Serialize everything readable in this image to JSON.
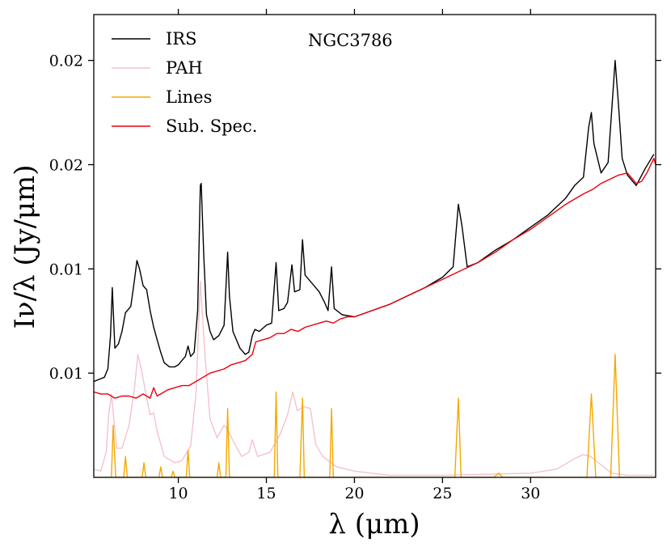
{
  "chart_data": {
    "type": "line",
    "title": "NGC3786",
    "xlabel": "λ (μm)",
    "ylabel": "Iν/λ (Jy/μm)",
    "xlim": [
      5.2,
      37.1
    ],
    "ylim": [
      0.0,
      0.0222
    ],
    "x_ticks": [
      10,
      15,
      20,
      25,
      30
    ],
    "x_tick_labels": [
      "10",
      "15",
      "20",
      "25",
      "30"
    ],
    "y_ticks": [
      0.005,
      0.01,
      0.015,
      0.02
    ],
    "y_tick_labels": [
      "0.01",
      "0.01",
      "0.02",
      "0.02"
    ],
    "legend_position": "top-left",
    "series": [
      {
        "name": "IRS",
        "color": "#000000",
        "points": [
          [
            5.2,
            0.0046
          ],
          [
            5.5,
            0.0047
          ],
          [
            5.8,
            0.0048
          ],
          [
            6.0,
            0.0052
          ],
          [
            6.15,
            0.0068
          ],
          [
            6.25,
            0.0091
          ],
          [
            6.4,
            0.0062
          ],
          [
            6.6,
            0.0064
          ],
          [
            6.8,
            0.007
          ],
          [
            7.0,
            0.0079
          ],
          [
            7.3,
            0.0082
          ],
          [
            7.5,
            0.0094
          ],
          [
            7.65,
            0.0104
          ],
          [
            7.8,
            0.01
          ],
          [
            8.0,
            0.0092
          ],
          [
            8.2,
            0.009
          ],
          [
            8.4,
            0.008
          ],
          [
            8.6,
            0.0072
          ],
          [
            8.8,
            0.0066
          ],
          [
            9.0,
            0.006
          ],
          [
            9.2,
            0.0055
          ],
          [
            9.5,
            0.0053
          ],
          [
            9.8,
            0.0053
          ],
          [
            10.0,
            0.0054
          ],
          [
            10.2,
            0.0056
          ],
          [
            10.4,
            0.0058
          ],
          [
            10.55,
            0.0063
          ],
          [
            10.7,
            0.0058
          ],
          [
            10.9,
            0.006
          ],
          [
            11.1,
            0.008
          ],
          [
            11.25,
            0.014
          ],
          [
            11.3,
            0.0141
          ],
          [
            11.45,
            0.0105
          ],
          [
            11.6,
            0.0078
          ],
          [
            11.8,
            0.007
          ],
          [
            12.0,
            0.0066
          ],
          [
            12.3,
            0.0068
          ],
          [
            12.6,
            0.0073
          ],
          [
            12.8,
            0.0108
          ],
          [
            12.9,
            0.0087
          ],
          [
            13.1,
            0.007
          ],
          [
            13.5,
            0.0062
          ],
          [
            13.8,
            0.0059
          ],
          [
            14.0,
            0.006
          ],
          [
            14.2,
            0.0068
          ],
          [
            14.35,
            0.0071
          ],
          [
            14.6,
            0.007
          ],
          [
            15.0,
            0.0073
          ],
          [
            15.3,
            0.0074
          ],
          [
            15.55,
            0.0103
          ],
          [
            15.7,
            0.008
          ],
          [
            16.0,
            0.0081
          ],
          [
            16.2,
            0.0084
          ],
          [
            16.45,
            0.0102
          ],
          [
            16.6,
            0.0089
          ],
          [
            16.9,
            0.009
          ],
          [
            17.05,
            0.0114
          ],
          [
            17.2,
            0.0097
          ],
          [
            17.6,
            0.0093
          ],
          [
            18.0,
            0.0089
          ],
          [
            18.3,
            0.0084
          ],
          [
            18.5,
            0.008
          ],
          [
            18.7,
            0.0101
          ],
          [
            18.85,
            0.0081
          ],
          [
            19.3,
            0.0078
          ],
          [
            20.0,
            0.0077
          ],
          [
            21.0,
            0.008
          ],
          [
            22.0,
            0.0083
          ],
          [
            23.0,
            0.0087
          ],
          [
            24.0,
            0.0091
          ],
          [
            25.0,
            0.0096
          ],
          [
            25.6,
            0.0101
          ],
          [
            25.9,
            0.0131
          ],
          [
            26.1,
            0.0121
          ],
          [
            26.4,
            0.0101
          ],
          [
            27.0,
            0.0103
          ],
          [
            28.0,
            0.0109
          ],
          [
            29.0,
            0.0114
          ],
          [
            30.0,
            0.012
          ],
          [
            31.0,
            0.0126
          ],
          [
            32.0,
            0.0134
          ],
          [
            32.5,
            0.014
          ],
          [
            33.0,
            0.0144
          ],
          [
            33.3,
            0.0168
          ],
          [
            33.45,
            0.0175
          ],
          [
            33.6,
            0.016
          ],
          [
            34.0,
            0.0146
          ],
          [
            34.4,
            0.0151
          ],
          [
            34.6,
            0.0175
          ],
          [
            34.8,
            0.02
          ],
          [
            35.0,
            0.0178
          ],
          [
            35.2,
            0.0153
          ],
          [
            35.5,
            0.0145
          ],
          [
            36.0,
            0.014
          ],
          [
            36.5,
            0.0148
          ],
          [
            37.0,
            0.0155
          ]
        ]
      },
      {
        "name": "PAH",
        "color": "#f4c3cb",
        "points": [
          [
            5.2,
            0.0004
          ],
          [
            5.6,
            0.0003
          ],
          [
            5.9,
            0.0012
          ],
          [
            6.05,
            0.003
          ],
          [
            6.2,
            0.004
          ],
          [
            6.5,
            0.0014
          ],
          [
            6.8,
            0.0014
          ],
          [
            7.2,
            0.0025
          ],
          [
            7.5,
            0.0042
          ],
          [
            7.7,
            0.0059
          ],
          [
            7.9,
            0.0052
          ],
          [
            8.2,
            0.0038
          ],
          [
            8.4,
            0.003
          ],
          [
            8.6,
            0.0031
          ],
          [
            8.8,
            0.0022
          ],
          [
            9.2,
            0.001
          ],
          [
            9.8,
            0.0007
          ],
          [
            10.2,
            0.0008
          ],
          [
            10.7,
            0.0015
          ],
          [
            11.0,
            0.004
          ],
          [
            11.25,
            0.0094
          ],
          [
            11.5,
            0.006
          ],
          [
            11.8,
            0.0028
          ],
          [
            12.2,
            0.0019
          ],
          [
            12.6,
            0.0025
          ],
          [
            12.8,
            0.0023
          ],
          [
            13.2,
            0.0016
          ],
          [
            13.6,
            0.001
          ],
          [
            14.0,
            0.0012
          ],
          [
            14.2,
            0.0018
          ],
          [
            14.5,
            0.001
          ],
          [
            15.2,
            0.0012
          ],
          [
            15.8,
            0.0021
          ],
          [
            16.2,
            0.003
          ],
          [
            16.5,
            0.0041
          ],
          [
            16.75,
            0.0032
          ],
          [
            17.1,
            0.0034
          ],
          [
            17.5,
            0.0033
          ],
          [
            17.8,
            0.0016
          ],
          [
            18.2,
            0.001
          ],
          [
            19.0,
            0.0005
          ],
          [
            20.0,
            0.0003
          ],
          [
            22.0,
            0.0001
          ],
          [
            25.0,
            0.0001
          ],
          [
            30.0,
            0.0002
          ],
          [
            31.5,
            0.0004
          ],
          [
            32.5,
            0.0009
          ],
          [
            33.0,
            0.0011
          ],
          [
            33.4,
            0.001
          ],
          [
            34.0,
            0.0006
          ],
          [
            34.6,
            0.0002
          ],
          [
            35.5,
            0.0001
          ],
          [
            37.0,
            0.0001
          ]
        ]
      },
      {
        "name": "Lines",
        "color": "#f5a800",
        "points": [
          [
            5.2,
            0.0
          ],
          [
            6.2,
            0.0
          ],
          [
            6.3,
            0.0025
          ],
          [
            6.45,
            0.0
          ],
          [
            6.9,
            0.0
          ],
          [
            7.0,
            0.001
          ],
          [
            7.1,
            0.0
          ],
          [
            7.95,
            0.0
          ],
          [
            8.05,
            0.0007
          ],
          [
            8.15,
            0.0
          ],
          [
            8.9,
            0.0
          ],
          [
            9.0,
            0.0005
          ],
          [
            9.1,
            0.0
          ],
          [
            9.6,
            0.0
          ],
          [
            9.7,
            0.0003
          ],
          [
            9.8,
            0.0
          ],
          [
            10.45,
            0.0
          ],
          [
            10.55,
            0.0013
          ],
          [
            10.65,
            0.0
          ],
          [
            12.2,
            0.0
          ],
          [
            12.3,
            0.0007
          ],
          [
            12.4,
            0.0
          ],
          [
            12.7,
            0.0
          ],
          [
            12.8,
            0.0033
          ],
          [
            12.9,
            0.0
          ],
          [
            15.45,
            0.0
          ],
          [
            15.55,
            0.0041
          ],
          [
            15.65,
            0.0
          ],
          [
            16.9,
            0.0
          ],
          [
            17.05,
            0.0038
          ],
          [
            17.15,
            0.0
          ],
          [
            18.6,
            0.0
          ],
          [
            18.7,
            0.0033
          ],
          [
            18.8,
            0.0
          ],
          [
            25.7,
            0.0
          ],
          [
            25.9,
            0.0038
          ],
          [
            26.05,
            0.0
          ],
          [
            27.9,
            0.0
          ],
          [
            28.2,
            0.0002
          ],
          [
            28.4,
            0.0
          ],
          [
            33.2,
            0.0
          ],
          [
            33.45,
            0.004
          ],
          [
            33.7,
            0.0
          ],
          [
            34.55,
            0.0
          ],
          [
            34.8,
            0.0059
          ],
          [
            35.05,
            0.0
          ],
          [
            37.1,
            0.0
          ]
        ]
      },
      {
        "name": "Sub. Spec.",
        "color": "#e8000b",
        "points": [
          [
            5.2,
            0.0041
          ],
          [
            5.6,
            0.004
          ],
          [
            6.0,
            0.004
          ],
          [
            6.4,
            0.0038
          ],
          [
            6.8,
            0.0039
          ],
          [
            7.2,
            0.0039
          ],
          [
            7.6,
            0.0038
          ],
          [
            8.0,
            0.004
          ],
          [
            8.4,
            0.0038
          ],
          [
            8.6,
            0.0043
          ],
          [
            8.8,
            0.0039
          ],
          [
            9.0,
            0.004
          ],
          [
            9.4,
            0.0042
          ],
          [
            9.8,
            0.0043
          ],
          [
            10.2,
            0.0044
          ],
          [
            10.6,
            0.0044
          ],
          [
            11.0,
            0.0046
          ],
          [
            11.4,
            0.0048
          ],
          [
            11.8,
            0.005
          ],
          [
            12.2,
            0.0051
          ],
          [
            12.6,
            0.0052
          ],
          [
            13.0,
            0.0054
          ],
          [
            13.4,
            0.0055
          ],
          [
            13.8,
            0.0056
          ],
          [
            14.2,
            0.0059
          ],
          [
            14.4,
            0.0065
          ],
          [
            14.8,
            0.0066
          ],
          [
            15.2,
            0.0067
          ],
          [
            15.6,
            0.0069
          ],
          [
            16.0,
            0.0069
          ],
          [
            16.4,
            0.0071
          ],
          [
            16.8,
            0.007
          ],
          [
            17.2,
            0.0072
          ],
          [
            17.6,
            0.0073
          ],
          [
            18.0,
            0.0074
          ],
          [
            18.4,
            0.0075
          ],
          [
            18.8,
            0.0074
          ],
          [
            19.2,
            0.0076
          ],
          [
            19.6,
            0.0077
          ],
          [
            20.0,
            0.0077
          ],
          [
            21.0,
            0.008
          ],
          [
            22.0,
            0.0083
          ],
          [
            23.0,
            0.0087
          ],
          [
            24.0,
            0.0091
          ],
          [
            25.0,
            0.0095
          ],
          [
            26.0,
            0.0099
          ],
          [
            27.0,
            0.0103
          ],
          [
            28.0,
            0.0108
          ],
          [
            29.0,
            0.0114
          ],
          [
            30.0,
            0.0119
          ],
          [
            31.0,
            0.0125
          ],
          [
            32.0,
            0.0131
          ],
          [
            33.0,
            0.0136
          ],
          [
            33.5,
            0.0138
          ],
          [
            34.0,
            0.0141
          ],
          [
            34.5,
            0.0143
          ],
          [
            35.0,
            0.0145
          ],
          [
            35.5,
            0.0146
          ],
          [
            36.0,
            0.0141
          ],
          [
            36.3,
            0.0142
          ],
          [
            36.6,
            0.0146
          ],
          [
            37.0,
            0.0153
          ],
          [
            37.1,
            0.015
          ]
        ]
      }
    ]
  }
}
